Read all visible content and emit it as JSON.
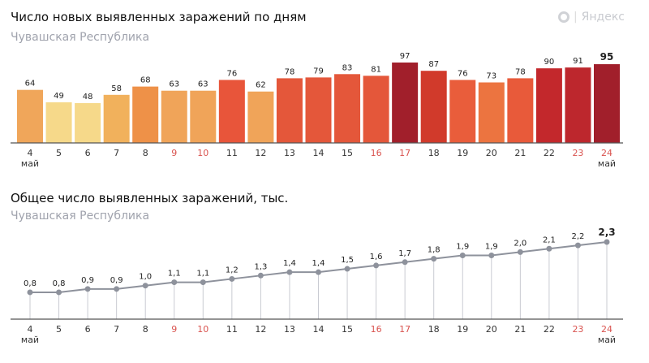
{
  "logo": {
    "text": "Яндекс",
    "icon": "yandex-logo-icon"
  },
  "chart_data": [
    {
      "type": "bar",
      "title": "Число новых выявленных заражений по дням",
      "subtitle": "Чувашская Республика",
      "categories": [
        "4",
        "5",
        "6",
        "7",
        "8",
        "9",
        "10",
        "11",
        "12",
        "13",
        "14",
        "15",
        "16",
        "17",
        "18",
        "19",
        "20",
        "21",
        "22",
        "23",
        "24"
      ],
      "month_label": "май",
      "weekend_categories": [
        "9",
        "10",
        "16",
        "17",
        "23",
        "24"
      ],
      "values": [
        64,
        49,
        48,
        58,
        68,
        63,
        63,
        76,
        62,
        78,
        79,
        83,
        81,
        97,
        87,
        76,
        73,
        78,
        90,
        91,
        95
      ],
      "colors": [
        "#f0a65a",
        "#f6d98a",
        "#f6d98a",
        "#f1b15c",
        "#ee9148",
        "#f0a459",
        "#f0a459",
        "#e8553a",
        "#f0a459",
        "#e4573a",
        "#e4573a",
        "#e4573a",
        "#e4573a",
        "#a11f2b",
        "#d13a2b",
        "#e95d3b",
        "#ec7440",
        "#e85a3a",
        "#c3282c",
        "#bd272d",
        "#a11f2b"
      ],
      "weekend_color": "#d9534f",
      "ylim": [
        0,
        100
      ],
      "grid": false
    },
    {
      "type": "line",
      "title": "Общее число выявленных заражений, тыс.",
      "subtitle": "Чувашская Республика",
      "categories": [
        "4",
        "5",
        "6",
        "7",
        "8",
        "9",
        "10",
        "11",
        "12",
        "13",
        "14",
        "15",
        "16",
        "17",
        "18",
        "19",
        "20",
        "21",
        "22",
        "23",
        "24"
      ],
      "month_label": "май",
      "weekend_categories": [
        "9",
        "10",
        "16",
        "17",
        "23",
        "24"
      ],
      "values": [
        0.8,
        0.8,
        0.9,
        0.9,
        1.0,
        1.1,
        1.1,
        1.2,
        1.3,
        1.4,
        1.4,
        1.5,
        1.6,
        1.7,
        1.8,
        1.9,
        1.9,
        2.0,
        2.1,
        2.2,
        2.3
      ],
      "labels": [
        "0,8",
        "0,8",
        "0,9",
        "0,9",
        "1,0",
        "1,1",
        "1,1",
        "1,2",
        "1,3",
        "1,4",
        "1,4",
        "1,5",
        "1,6",
        "1,7",
        "1,8",
        "1,9",
        "1,9",
        "2,0",
        "2,1",
        "2,2",
        "2,3"
      ],
      "line_color": "#8e929c",
      "ylim": [
        0,
        2.4
      ],
      "grid": false
    }
  ]
}
